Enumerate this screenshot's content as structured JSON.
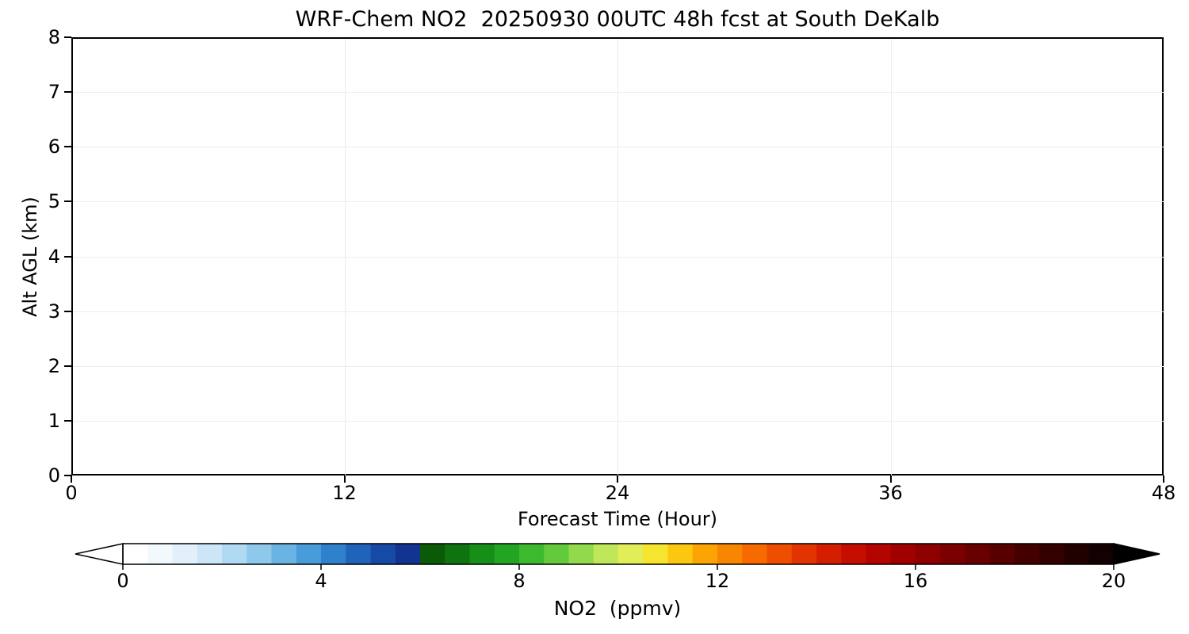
{
  "title": "WRF-Chem NO2  20250930 00UTC 48h fcst at South DeKalb",
  "chart_data": {
    "type": "heatmap",
    "title": "WRF-Chem NO2  20250930 00UTC 48h fcst at South DeKalb",
    "xlabel": "Forecast Time (Hour)",
    "ylabel": "Alt AGL (km)",
    "xlim": [
      0,
      48
    ],
    "ylim": [
      0,
      8
    ],
    "x_ticks": [
      0,
      12,
      24,
      36,
      48
    ],
    "y_ticks": [
      0,
      1,
      2,
      3,
      4,
      5,
      6,
      7,
      8
    ],
    "grid": true,
    "field": "blank",
    "field_note": "plot area renders entirely white (no NO2 contour signal visible above lowest color bin)",
    "colorbar": {
      "label": "NO2  (ppmv)",
      "ticks": [
        0,
        4,
        8,
        12,
        16,
        20
      ],
      "range": [
        0,
        20
      ],
      "extend": "both",
      "under_color": "#ffffff",
      "over_color": "#000000",
      "segment_colors": [
        "#ffffff",
        "#f2f9fd",
        "#e1f0fa",
        "#cce6f7",
        "#b0d9f2",
        "#8ec9ec",
        "#6ab4e4",
        "#489cd9",
        "#2f81cc",
        "#2063ba",
        "#174aa6",
        "#123390",
        "#0a5a08",
        "#0f7410",
        "#178e18",
        "#22a522",
        "#3cb92d",
        "#63ca3b",
        "#92da4b",
        "#c0e75a",
        "#e2ee58",
        "#f6e52e",
        "#fbc70f",
        "#fba504",
        "#f98600",
        "#f66a00",
        "#ef4d00",
        "#e33300",
        "#d51e00",
        "#c60e00",
        "#b40400",
        "#a10000",
        "#8e0000",
        "#7b0000",
        "#680000",
        "#560000",
        "#440000",
        "#330000",
        "#230000",
        "#130000"
      ]
    }
  }
}
